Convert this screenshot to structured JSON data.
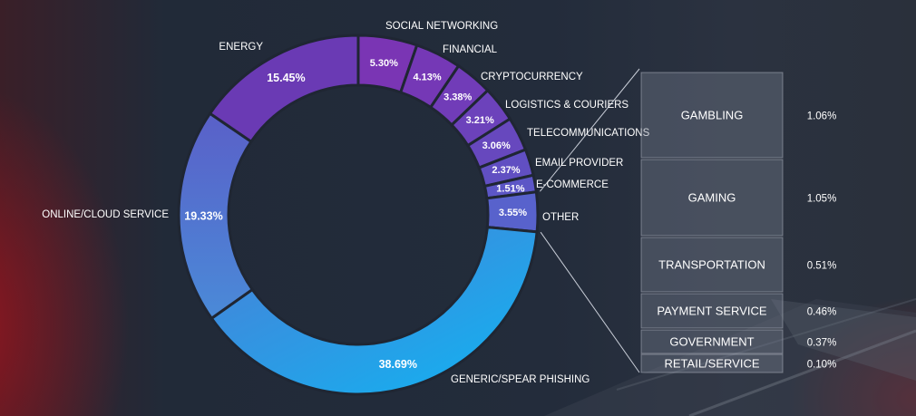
{
  "chart_data": {
    "type": "donut",
    "title": "",
    "slices": [
      {
        "label": "SOCIAL NETWORKING",
        "value": 5.3,
        "value_label": "5.30%",
        "color": "#7a35b4"
      },
      {
        "label": "FINANCIAL",
        "value": 4.13,
        "value_label": "4.13%",
        "color": "#7538b6"
      },
      {
        "label": "CRYPTOCURRENCY",
        "value": 3.38,
        "value_label": "3.38%",
        "color": "#713cb8"
      },
      {
        "label": "LOGISTICS & COURIERS",
        "value": 3.21,
        "value_label": "3.21%",
        "color": "#6c42bb"
      },
      {
        "label": "TELECOMMUNICATIONS",
        "value": 3.06,
        "value_label": "3.06%",
        "color": "#6748be"
      },
      {
        "label": "EMAIL PROVIDER",
        "value": 2.37,
        "value_label": "2.37%",
        "color": "#614fc2"
      },
      {
        "label": "E-COMMERCE",
        "value": 1.51,
        "value_label": "1.51%",
        "color": "#5c56c6"
      },
      {
        "label": "OTHER",
        "value": 3.55,
        "value_label": "3.55%",
        "color": "#5862cc"
      },
      {
        "label": "GENERIC/SPEAR PHISHING",
        "value": 38.69,
        "value_label": "38.69%",
        "color": "#2f98e0"
      },
      {
        "label": "ONLINE/CLOUD SERVICE",
        "value": 19.33,
        "value_label": "19.33%",
        "color": "#4f72ce"
      },
      {
        "label": "ENERGY",
        "value": 15.45,
        "value_label": "15.45%",
        "color": "#6a3ab4"
      }
    ],
    "breakdown_of": "OTHER",
    "breakdown": [
      {
        "label": "GAMBLING",
        "value": 1.06,
        "value_label": "1.06%"
      },
      {
        "label": "GAMING",
        "value": 1.05,
        "value_label": "1.05%"
      },
      {
        "label": "TRANSPORTATION",
        "value": 0.51,
        "value_label": "0.51%"
      },
      {
        "label": "PAYMENT SERVICE",
        "value": 0.46,
        "value_label": "0.46%"
      },
      {
        "label": "GOVERNMENT",
        "value": 0.37,
        "value_label": "0.37%"
      },
      {
        "label": "RETAIL/SERVICE",
        "value": 0.1,
        "value_label": "0.10%"
      }
    ]
  }
}
